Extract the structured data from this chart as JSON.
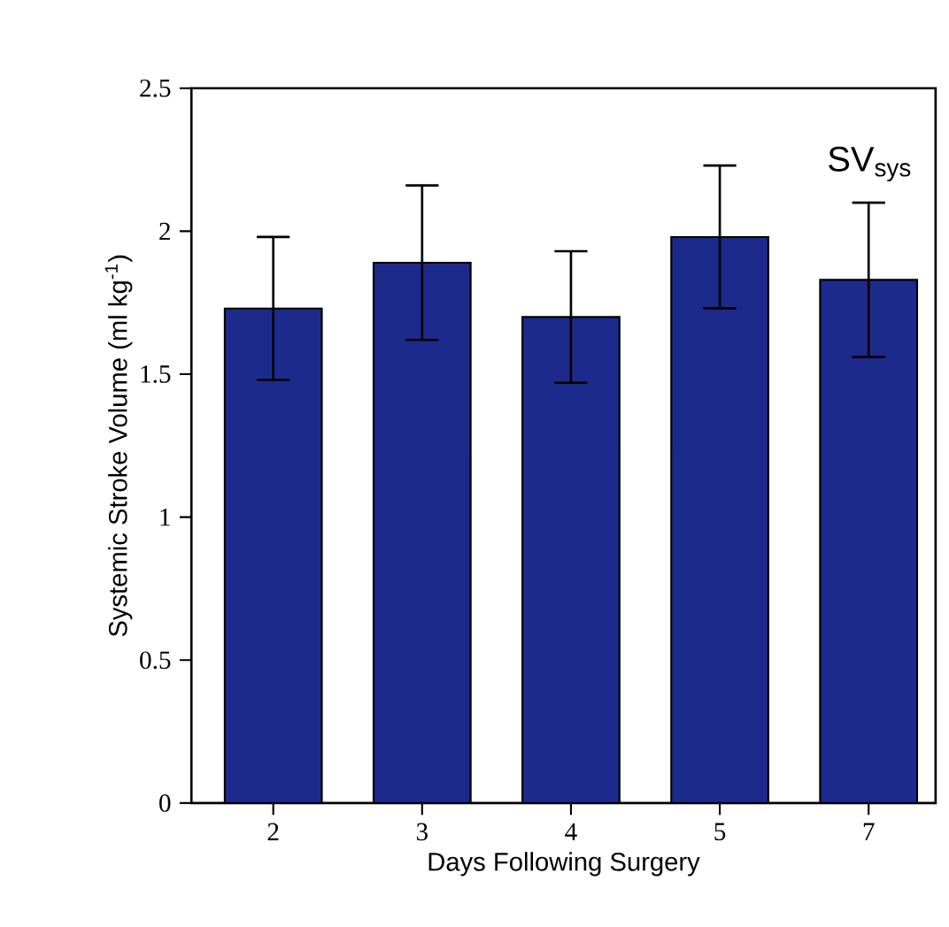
{
  "chart_data": {
    "type": "bar",
    "xlabel": "Days Following Surgery",
    "ylabel": "Systemic Stroke Volume (ml kg$^{-1}$)",
    "categories": [
      "2",
      "3",
      "4",
      "5",
      "7"
    ],
    "values": [
      1.73,
      1.89,
      1.7,
      1.98,
      1.83
    ],
    "errors": [
      0.25,
      0.27,
      0.23,
      0.25,
      0.27
    ],
    "color": "#1c2a8c",
    "ylim": [
      0,
      2.5
    ],
    "yticks": [
      0,
      0.5,
      1,
      1.5,
      2,
      2.5
    ],
    "annotations": [
      "SV$_{sys}$"
    ]
  }
}
